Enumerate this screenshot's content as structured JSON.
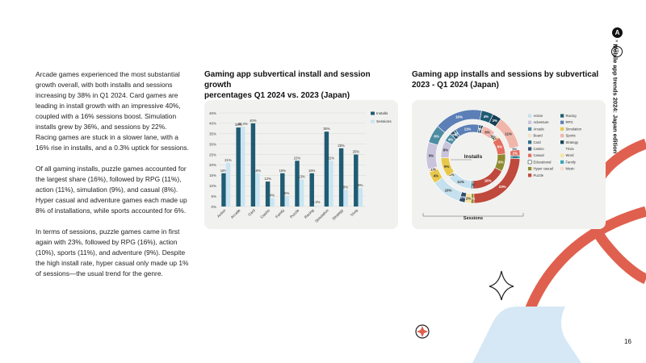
{
  "side_title": "Mobile app trends 2024: Japan edition",
  "page_number": "16",
  "logo": {
    "letter": "A",
    "x": "×",
    "partner": "G"
  },
  "body_paragraphs": [
    "Arcade games experienced the most substantial growth overall, with both installs and sessions increasing by 38% in Q1 2024. Card games are leading in install growth with an impressive 40%, coupled with a 16% sessions boost. Simulation installs grew by 36%, and sessions by 22%. Racing games are stuck in a slower lane, with a 16% rise in installs, and a 0.3% uptick for sessions.",
    "Of all gaming installs, puzzle games accounted for the largest share (16%), followed by RPG (11%), action (11%), simulation (9%), and casual (8%). Hyper casual and adventure games each made up 8% of installations, while sports accounted for 6%.",
    "In terms of sessions, puzzle games came in first again with 23%, followed by RPG (16%), action (10%), sports (11%), and adventure (9%). Despite the high install rate, hyper casual only made up 1% of sessions—the usual trend for the genre."
  ],
  "colors": {
    "dark_teal": "#1f5c73",
    "light_blue": "#c9e4f2",
    "panel_bg": "#f1f1ef",
    "accent_red": "#e0604f",
    "decor_blue": "#d6e8f6"
  },
  "chart_data": [
    {
      "type": "bar",
      "title": "Gaming app subvertical install and session growth\npercentages Q1 2024 vs. 2023 (Japan)",
      "categories": [
        "Action",
        "Arcade",
        "Card",
        "Casino",
        "Family",
        "Puzzle",
        "Racing",
        "Simulation",
        "Strategy",
        "Trivia"
      ],
      "series": [
        {
          "name": "Installs",
          "color": "#1f5c73",
          "values": [
            16,
            38,
            40,
            12,
            16,
            22,
            16,
            36,
            28,
            25
          ],
          "labels": [
            "16%",
            "38%",
            "40%",
            "12%",
            "16%",
            "22%",
            "16%",
            "36%",
            "28%",
            "25%"
          ]
        },
        {
          "name": "Sessions",
          "color": "#c9e4f2",
          "values": [
            21,
            38.4,
            16,
            4,
            5,
            13,
            0.3,
            22,
            8,
            9
          ],
          "labels": [
            "21%",
            "38.4%",
            "16%",
            "4%",
            "5%",
            "13%",
            "0.3%",
            "22%",
            "8%",
            "9%"
          ]
        }
      ],
      "ylim": [
        0,
        45
      ],
      "yticks": [
        "0%",
        "5%",
        "10%",
        "15%",
        "20%",
        "25%",
        "30%",
        "35%",
        "40%",
        "45%"
      ],
      "grid": true,
      "legend_position": "top-right"
    },
    {
      "type": "pie",
      "title": "Gaming app installs and sessions by subvertical\n2023 - Q1 2024 (Japan)",
      "inner_label": "Installs",
      "outer_label": "Sessions",
      "legend": [
        {
          "name": "Action",
          "color": "#c5e0ee"
        },
        {
          "name": "Racing",
          "color": "#1f5c73"
        },
        {
          "name": "Adventure",
          "color": "#c9c3dc"
        },
        {
          "name": "RPG",
          "color": "#5b7fb6"
        },
        {
          "name": "Arcade",
          "color": "#4e8ca3"
        },
        {
          "name": "Simulation",
          "color": "#e8c84a"
        },
        {
          "name": "Board",
          "color": "#f3e2c8"
        },
        {
          "name": "Sports",
          "color": "#f1b6ab"
        },
        {
          "name": "Card",
          "color": "#2b6c8a"
        },
        {
          "name": "Strategy",
          "color": "#163f55"
        },
        {
          "name": "Casino",
          "color": "#2f4e6e"
        },
        {
          "name": "Trivia",
          "color": "#e6f2f8"
        },
        {
          "name": "Casual",
          "color": "#e36d5f"
        },
        {
          "name": "Word",
          "color": "#f7e3a0"
        },
        {
          "name": "Educational",
          "color": "#ffffff"
        },
        {
          "name": "Family",
          "color": "#3aa6b9"
        },
        {
          "name": "Hyper casual",
          "color": "#8f8a2e"
        },
        {
          "name": "Music",
          "color": "#f6ddd0"
        },
        {
          "name": "Puzzle",
          "color": "#c0493d"
        }
      ],
      "installs": [
        {
          "name": "Racing",
          "value": 1,
          "label": "1%",
          "color": "#1f5c73"
        },
        {
          "name": "Strategy",
          "value": 1,
          "label": "1%",
          "color": "#163f55"
        },
        {
          "name": "Sports",
          "value": 6,
          "label": "6%",
          "color": "#f1b6ab"
        },
        {
          "name": "Trivia",
          "value": 1,
          "label": "1%",
          "color": "#e6f2f8"
        },
        {
          "name": "Music",
          "value": 1,
          "label": "1%",
          "color": "#f6ddd0"
        },
        {
          "name": "Word",
          "value": 1,
          "label": "1%",
          "color": "#f7e3a0"
        },
        {
          "name": "Casual",
          "value": 8,
          "label": "8%",
          "color": "#e36d5f"
        },
        {
          "name": "Hyper casual",
          "value": 8,
          "label": "8%",
          "color": "#8f8a2e"
        },
        {
          "name": "Puzzle",
          "value": 16,
          "label": "16%",
          "color": "#c0493d"
        },
        {
          "name": "Family",
          "value": 1,
          "label": "1%",
          "color": "#3aa6b9"
        },
        {
          "name": "Action",
          "value": 11,
          "label": "11%",
          "color": "#c5e0ee"
        },
        {
          "name": "Board",
          "value": 1,
          "label": "1%",
          "color": "#f3e2c8"
        },
        {
          "name": "Simulation",
          "value": 9,
          "label": "9%",
          "color": "#e8c84a"
        },
        {
          "name": "Adventure",
          "value": 8,
          "label": "8%",
          "color": "#c9c3dc"
        },
        {
          "name": "Arcade",
          "value": 4,
          "label": "4%",
          "color": "#4e8ca3"
        },
        {
          "name": "Casino",
          "value": 2,
          "label": "2%",
          "color": "#2f4e6e"
        },
        {
          "name": "Card",
          "value": 1,
          "label": "1%",
          "color": "#2b6c8a"
        },
        {
          "name": "RPG",
          "value": 11,
          "label": "11%",
          "color": "#5b7fb6"
        }
      ],
      "sessions": [
        {
          "name": "Racing",
          "value": 4,
          "label": "4%",
          "color": "#1f5c73"
        },
        {
          "name": "Strategy",
          "value": 3,
          "label": "3%",
          "color": "#163f55"
        },
        {
          "name": "Sports",
          "value": 11,
          "label": "11%",
          "color": "#f1b6ab"
        },
        {
          "name": "Trivia",
          "value": 1,
          "label": "1%",
          "color": "#e6f2f8"
        },
        {
          "name": "Casual",
          "value": 2,
          "label": "2%",
          "color": "#e36d5f"
        },
        {
          "name": "Family",
          "value": 1,
          "label": "1%",
          "color": "#3aa6b9"
        },
        {
          "name": "Puzzle",
          "value": 23,
          "label": "23%",
          "color": "#c0493d"
        },
        {
          "name": "Hyper casual",
          "value": 1,
          "label": "1%",
          "color": "#8f8a2e"
        },
        {
          "name": "Word",
          "value": 2,
          "label": "2%",
          "color": "#f7e3a0"
        },
        {
          "name": "Casino",
          "value": 2,
          "label": "2%",
          "color": "#2f4e6e"
        },
        {
          "name": "Action",
          "value": 10,
          "label": "10%",
          "color": "#c5e0ee"
        },
        {
          "name": "Simulation",
          "value": 4,
          "label": "4%",
          "color": "#e8c84a"
        },
        {
          "name": "Board",
          "value": 1,
          "label": "1%",
          "color": "#f3e2c8"
        },
        {
          "name": "Adventure",
          "value": 9,
          "label": "9%",
          "color": "#c9c3dc"
        },
        {
          "name": "Arcade",
          "value": 6,
          "label": "6%",
          "color": "#4e8ca3"
        },
        {
          "name": "RPG",
          "value": 16,
          "label": "16%",
          "color": "#5b7fb6"
        }
      ]
    }
  ]
}
